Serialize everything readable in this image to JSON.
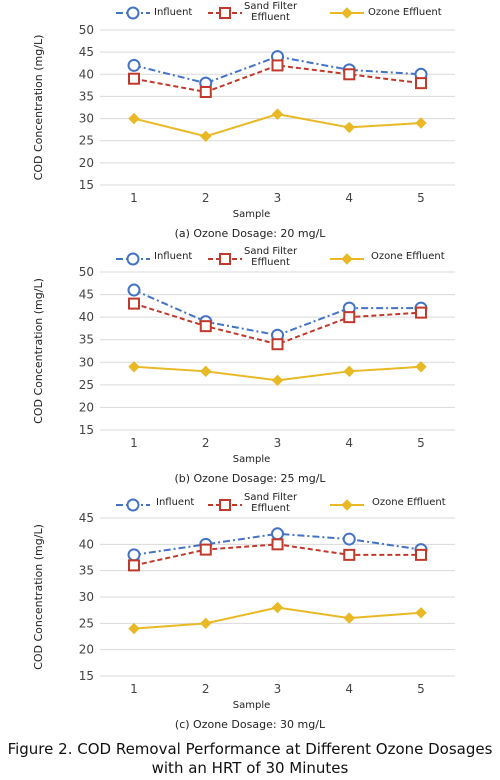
{
  "legend": {
    "influent": "Influent",
    "sand_filter": "Sand Filter\nEffluent",
    "ozone": "Ozone Effluent"
  },
  "colors": {
    "influent": "#4472c4",
    "sand_filter": "#c0392b",
    "ozone": "#e8b925",
    "grid": "#d9d9d9"
  },
  "figure_caption": "Figure 2. COD Removal Performance at Different Ozone Dosages with an HRT of 30 Minutes",
  "chart_data": [
    {
      "type": "line",
      "caption": "(a) Ozone Dosage: 20 mg/L",
      "xlabel": "Sample",
      "ylabel": "COD Concentration (mg/L)",
      "x": [
        1,
        2,
        3,
        4,
        5
      ],
      "ylim": [
        15,
        50
      ],
      "yticks": [
        15,
        20,
        25,
        30,
        35,
        40,
        45,
        50
      ],
      "grid": true,
      "series": [
        {
          "name": "Influent",
          "values": [
            42,
            38,
            44,
            41,
            40
          ]
        },
        {
          "name": "Sand Filter Effluent",
          "values": [
            39,
            36,
            42,
            40,
            38
          ]
        },
        {
          "name": "Ozone Effluent",
          "values": [
            30,
            26,
            31,
            28,
            29
          ]
        }
      ]
    },
    {
      "type": "line",
      "caption": "(b) Ozone Dosage: 25 mg/L",
      "xlabel": "Sample",
      "ylabel": "COD Concentration (mg/L)",
      "x": [
        1,
        2,
        3,
        4,
        5
      ],
      "ylim": [
        15,
        50
      ],
      "yticks": [
        15,
        20,
        25,
        30,
        35,
        40,
        45,
        50
      ],
      "grid": true,
      "series": [
        {
          "name": "Influent",
          "values": [
            46,
            39,
            36,
            42,
            42
          ]
        },
        {
          "name": "Sand Filter Effluent",
          "values": [
            43,
            38,
            34,
            40,
            41
          ]
        },
        {
          "name": "Ozone Effluent",
          "values": [
            29,
            28,
            26,
            28,
            29
          ]
        }
      ]
    },
    {
      "type": "line",
      "caption": "(c) Ozone Dosage: 30 mg/L",
      "xlabel": "Sample",
      "ylabel": "COD Concentration (mg/L)",
      "x": [
        1,
        2,
        3,
        4,
        5
      ],
      "ylim": [
        15,
        45
      ],
      "yticks": [
        15,
        20,
        25,
        30,
        35,
        40,
        45
      ],
      "grid": true,
      "series": [
        {
          "name": "Influent",
          "values": [
            38,
            40,
            42,
            41,
            39
          ]
        },
        {
          "name": "Sand Filter Effluent",
          "values": [
            36,
            39,
            40,
            38,
            38
          ]
        },
        {
          "name": "Ozone Effluent",
          "values": [
            24,
            25,
            28,
            26,
            27
          ]
        }
      ]
    }
  ]
}
